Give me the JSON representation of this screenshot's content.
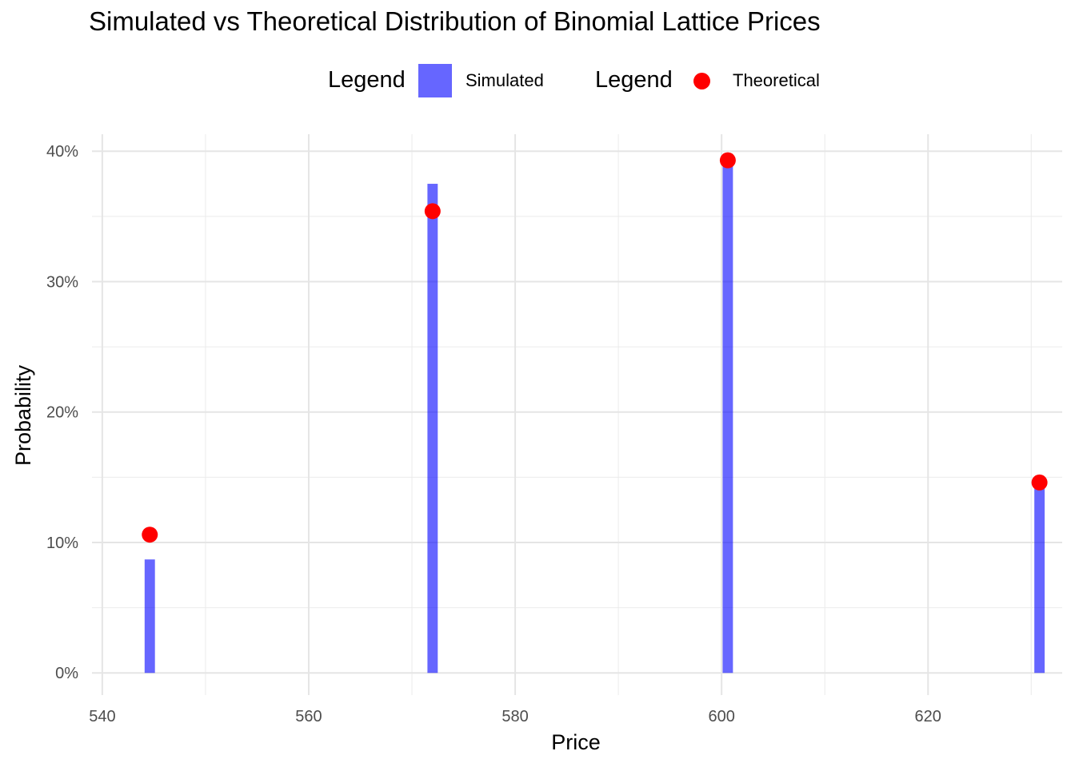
{
  "chart_data": {
    "type": "bar",
    "title": "Simulated vs Theoretical Distribution of Binomial Lattice Prices",
    "xlabel": "Price",
    "ylabel": "Probability",
    "xlim": [
      539,
      633
    ],
    "ylim": [
      -0.017,
      0.413
    ],
    "x_ticks": [
      540,
      560,
      580,
      600,
      620
    ],
    "x_tick_labels": [
      "540",
      "560",
      "580",
      "600",
      "620"
    ],
    "y_ticks": [
      0,
      0.1,
      0.2,
      0.3,
      0.4
    ],
    "y_tick_labels": [
      "0%",
      "10%",
      "20%",
      "30%",
      "40%"
    ],
    "grid": true,
    "legend_position": "top",
    "series": [
      {
        "name": "Simulated",
        "kind": "bar",
        "color": "#0000ff",
        "opacity": 0.6,
        "bar_width_units": 1,
        "points": [
          {
            "x": 544.6,
            "y": 0.087
          },
          {
            "x": 572.0,
            "y": 0.375
          },
          {
            "x": 600.6,
            "y": 0.39
          },
          {
            "x": 630.8,
            "y": 0.145
          }
        ]
      },
      {
        "name": "Theoretical",
        "kind": "point",
        "color": "#ff0000",
        "points": [
          {
            "x": 544.6,
            "y": 0.106
          },
          {
            "x": 572.0,
            "y": 0.354
          },
          {
            "x": 600.6,
            "y": 0.393
          },
          {
            "x": 630.8,
            "y": 0.146
          }
        ]
      }
    ]
  },
  "legend": {
    "groups": [
      {
        "title": "Legend",
        "label": "Simulated",
        "key": "rect",
        "color": "#0000ff"
      },
      {
        "title": "Legend",
        "label": "Theoretical",
        "key": "point",
        "color": "#ff0000"
      }
    ]
  }
}
